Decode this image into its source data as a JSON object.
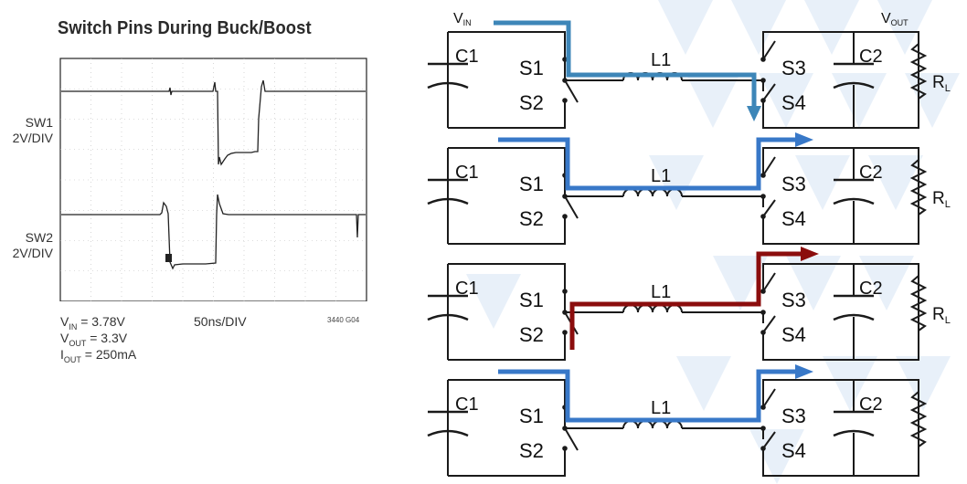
{
  "scope": {
    "title": "Switch Pins During Buck/Boost",
    "channels": [
      {
        "name": "SW1",
        "scale": "2V/DIV"
      },
      {
        "name": "SW2",
        "scale": "2V/DIV"
      }
    ],
    "vin": "V",
    "vin_sub": "IN",
    "vin_val": " = 3.78V",
    "vout": "V",
    "vout_sub": "OUT",
    "vout_val": " = 3.3V",
    "iout": "I",
    "iout_sub": "OUT",
    "iout_val": " = 250mA",
    "timebase": "50ns/DIV",
    "code": "3440 G04"
  },
  "circuit": {
    "vin": "V",
    "vin_sub": "IN",
    "vout": "V",
    "vout_sub": "OUT",
    "c1": "C1",
    "c2": "C2",
    "s1": "S1",
    "s2": "S2",
    "s3": "S3",
    "s4": "S4",
    "l1": "L1",
    "rl": "R",
    "rl_sub": "L"
  },
  "colors": {
    "wire": "#1a1a1a",
    "path_blue": "#3878c8",
    "path_steel": "#3d86b8",
    "path_red": "#8b0d0d",
    "watermark": "#e6eef8"
  }
}
